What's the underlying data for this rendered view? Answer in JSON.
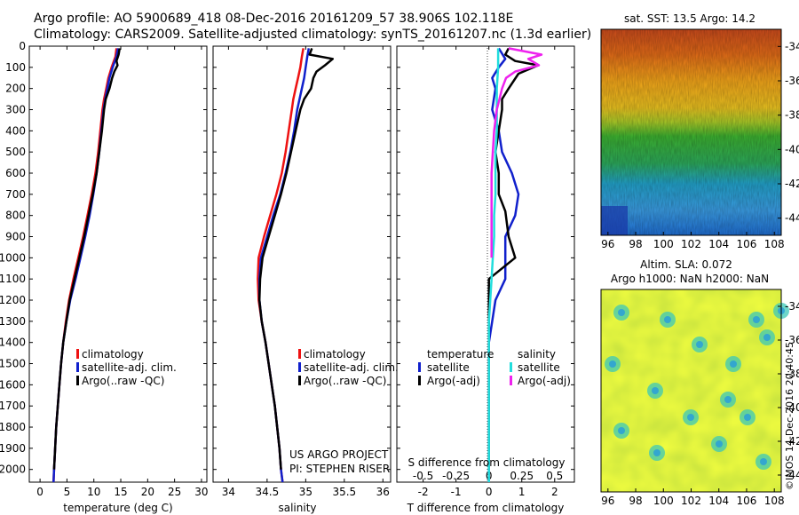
{
  "title_line1": "Argo profile: AO 5900689_418 08-Dec-2016 20161209_57 38.906S 102.118E",
  "title_line2": "Climatology: CARS2009. Satellite-adjusted climatology: synTS_20161207.nc (1.3d earlier)",
  "colors": {
    "climatology": "#ee1111",
    "satellite": "#1020cc",
    "argo": "#000000",
    "sal_satellite": "#22dddd",
    "sal_argo": "#ee22ee"
  },
  "chart_data": [
    {
      "type": "line",
      "xlabel": "temperature (deg C)",
      "ylabel": "",
      "xlim": [
        -2,
        31
      ],
      "ylim": [
        2060,
        0
      ],
      "xticks": [
        0,
        5,
        10,
        15,
        20,
        25,
        30
      ],
      "yticks": [
        0,
        100,
        200,
        300,
        400,
        500,
        600,
        700,
        800,
        900,
        1000,
        1100,
        1200,
        1300,
        1400,
        1500,
        1600,
        1700,
        1800,
        1900,
        2000
      ],
      "legend": {
        "position": "lower-middle",
        "entries": [
          "climatology",
          "satellite-adj. clim.",
          "Argo(..raw -QC)"
        ]
      },
      "series": [
        {
          "name": "climatology",
          "color": "#ee1111",
          "points": [
            [
              14.2,
              10
            ],
            [
              14.0,
              50
            ],
            [
              13.3,
              100
            ],
            [
              12.7,
              150
            ],
            [
              12.3,
              200
            ],
            [
              11.9,
              250
            ],
            [
              11.6,
              300
            ],
            [
              11.2,
              400
            ],
            [
              10.8,
              500
            ],
            [
              10.3,
              600
            ],
            [
              9.6,
              700
            ],
            [
              8.8,
              800
            ],
            [
              8.0,
              900
            ],
            [
              7.1,
              1000
            ],
            [
              6.2,
              1100
            ],
            [
              5.4,
              1200
            ],
            [
              4.8,
              1300
            ],
            [
              4.3,
              1400
            ],
            [
              3.9,
              1500
            ],
            [
              3.6,
              1600
            ],
            [
              3.3,
              1700
            ],
            [
              3.0,
              1800
            ],
            [
              2.8,
              1900
            ],
            [
              2.6,
              2000
            ],
            [
              2.5,
              2060
            ]
          ]
        },
        {
          "name": "satellite-adj. clim.",
          "color": "#1020cc",
          "points": [
            [
              14.5,
              10
            ],
            [
              14.2,
              50
            ],
            [
              13.5,
              100
            ],
            [
              12.9,
              150
            ],
            [
              12.5,
              200
            ],
            [
              12.1,
              250
            ],
            [
              11.8,
              300
            ],
            [
              11.4,
              400
            ],
            [
              11.0,
              500
            ],
            [
              10.5,
              600
            ],
            [
              9.9,
              700
            ],
            [
              9.2,
              800
            ],
            [
              8.4,
              900
            ],
            [
              7.5,
              1000
            ],
            [
              6.6,
              1100
            ],
            [
              5.6,
              1200
            ],
            [
              4.9,
              1300
            ],
            [
              4.3,
              1400
            ],
            [
              3.9,
              1500
            ],
            [
              3.6,
              1600
            ],
            [
              3.3,
              1700
            ],
            [
              3.0,
              1800
            ],
            [
              2.8,
              1900
            ],
            [
              2.6,
              2000
            ],
            [
              2.5,
              2060
            ]
          ]
        },
        {
          "name": "Argo(..raw -QC)",
          "color": "#000000",
          "points": [
            [
              14.8,
              10
            ],
            [
              14.6,
              40
            ],
            [
              14.2,
              70
            ],
            [
              14.4,
              90
            ],
            [
              13.8,
              120
            ],
            [
              13.4,
              150
            ],
            [
              12.9,
              200
            ],
            [
              12.2,
              250
            ],
            [
              11.9,
              300
            ],
            [
              11.5,
              400
            ],
            [
              11.0,
              500
            ],
            [
              10.5,
              600
            ],
            [
              9.8,
              700
            ],
            [
              9.0,
              800
            ],
            [
              8.2,
              900
            ],
            [
              7.3,
              1000
            ],
            [
              6.4,
              1100
            ],
            [
              5.5,
              1200
            ],
            [
              4.9,
              1300
            ],
            [
              4.3,
              1400
            ],
            [
              3.9,
              1500
            ],
            [
              3.6,
              1600
            ],
            [
              3.3,
              1700
            ],
            [
              3.0,
              1800
            ],
            [
              2.8,
              1900
            ],
            [
              2.6,
              2000
            ]
          ]
        }
      ]
    },
    {
      "type": "line",
      "xlabel": "salinity",
      "xlim": [
        33.8,
        36.1
      ],
      "ylim": [
        2060,
        0
      ],
      "xticks": [
        34,
        34.5,
        35,
        35.5,
        36
      ],
      "legend": {
        "position": "lower-right",
        "entries": [
          "climatology",
          "satellite-adj. clim.",
          "Argo(..raw -QC)"
        ]
      },
      "annotation_lines": [
        "US ARGO PROJECT",
        "PI: STEPHEN RISER"
      ],
      "series": [
        {
          "name": "climatology",
          "color": "#ee1111",
          "points": [
            [
              34.97,
              10
            ],
            [
              34.95,
              50
            ],
            [
              34.93,
              100
            ],
            [
              34.9,
              150
            ],
            [
              34.87,
              200
            ],
            [
              34.84,
              250
            ],
            [
              34.82,
              300
            ],
            [
              34.78,
              400
            ],
            [
              34.74,
              500
            ],
            [
              34.69,
              600
            ],
            [
              34.62,
              700
            ],
            [
              34.54,
              800
            ],
            [
              34.46,
              900
            ],
            [
              34.39,
              1000
            ],
            [
              34.38,
              1100
            ],
            [
              34.39,
              1200
            ],
            [
              34.43,
              1300
            ],
            [
              34.48,
              1400
            ],
            [
              34.52,
              1500
            ],
            [
              34.56,
              1600
            ],
            [
              34.6,
              1700
            ],
            [
              34.63,
              1800
            ],
            [
              34.66,
              1900
            ],
            [
              34.68,
              2000
            ],
            [
              34.7,
              2060
            ]
          ]
        },
        {
          "name": "satellite-adj. clim.",
          "color": "#1020cc",
          "points": [
            [
              35.04,
              10
            ],
            [
              35.02,
              50
            ],
            [
              35.0,
              100
            ],
            [
              34.98,
              150
            ],
            [
              34.95,
              200
            ],
            [
              34.92,
              250
            ],
            [
              34.89,
              300
            ],
            [
              34.85,
              400
            ],
            [
              34.8,
              500
            ],
            [
              34.74,
              600
            ],
            [
              34.67,
              700
            ],
            [
              34.58,
              800
            ],
            [
              34.5,
              900
            ],
            [
              34.42,
              1000
            ],
            [
              34.4,
              1100
            ],
            [
              34.4,
              1200
            ],
            [
              34.43,
              1300
            ],
            [
              34.48,
              1400
            ],
            [
              34.52,
              1500
            ],
            [
              34.56,
              1600
            ],
            [
              34.6,
              1700
            ],
            [
              34.63,
              1800
            ],
            [
              34.66,
              1900
            ],
            [
              34.68,
              2000
            ],
            [
              34.7,
              2060
            ]
          ]
        },
        {
          "name": "Argo(..raw -QC)",
          "color": "#000000",
          "points": [
            [
              35.08,
              10
            ],
            [
              35.05,
              40
            ],
            [
              35.35,
              60
            ],
            [
              35.25,
              90
            ],
            [
              35.14,
              120
            ],
            [
              35.1,
              150
            ],
            [
              35.07,
              200
            ],
            [
              34.98,
              250
            ],
            [
              34.93,
              300
            ],
            [
              34.87,
              400
            ],
            [
              34.81,
              500
            ],
            [
              34.75,
              600
            ],
            [
              34.68,
              700
            ],
            [
              34.6,
              800
            ],
            [
              34.52,
              900
            ],
            [
              34.44,
              1000
            ],
            [
              34.41,
              1100
            ],
            [
              34.4,
              1200
            ],
            [
              34.43,
              1300
            ],
            [
              34.48,
              1400
            ],
            [
              34.52,
              1500
            ],
            [
              34.56,
              1600
            ],
            [
              34.6,
              1700
            ],
            [
              34.63,
              1800
            ],
            [
              34.66,
              1900
            ],
            [
              34.68,
              2000
            ]
          ]
        }
      ]
    },
    {
      "type": "line",
      "xlabel": "T difference from climatology",
      "top_axis_label": "S difference from climatology",
      "xlim": [
        -2.8,
        2.6
      ],
      "ylim": [
        2060,
        0
      ],
      "xticks": [
        -2,
        -1,
        0,
        1,
        2
      ],
      "xticks_top": [
        -0.5,
        -0.25,
        0,
        0.25,
        0.5
      ],
      "xticks_top_labels": [
        "-0.5",
        "-0.25",
        "0",
        "0.25",
        "0.5"
      ],
      "legend": {
        "position": "lower",
        "groups": [
          {
            "title": "temperature",
            "entries": [
              "satellite",
              "Argo(-adj)"
            ]
          },
          {
            "title": "salinity",
            "entries": [
              "satellite",
              "Argo(-adj)"
            ]
          }
        ]
      },
      "series": [
        {
          "name": "temperature satellite",
          "color": "#1020cc",
          "points": [
            [
              0.3,
              10
            ],
            [
              0.5,
              60
            ],
            [
              0.3,
              100
            ],
            [
              0.1,
              150
            ],
            [
              0.2,
              200
            ],
            [
              0.1,
              300
            ],
            [
              0.3,
              400
            ],
            [
              0.4,
              500
            ],
            [
              0.7,
              600
            ],
            [
              0.9,
              700
            ],
            [
              0.8,
              800
            ],
            [
              0.5,
              900
            ],
            [
              0.5,
              1000
            ],
            [
              0.5,
              1100
            ],
            [
              0.2,
              1200
            ],
            [
              0.1,
              1300
            ],
            [
              0,
              1400
            ],
            [
              0,
              2060
            ]
          ]
        },
        {
          "name": "temperature Argo(-adj)",
          "color": "#000000",
          "points": [
            [
              0.6,
              10
            ],
            [
              0.5,
              40
            ],
            [
              0.8,
              70
            ],
            [
              1.5,
              90
            ],
            [
              0.9,
              130
            ],
            [
              0.6,
              200
            ],
            [
              0.4,
              250
            ],
            [
              0.4,
              300
            ],
            [
              0.3,
              400
            ],
            [
              0.2,
              500
            ],
            [
              0.3,
              600
            ],
            [
              0.3,
              700
            ],
            [
              0.5,
              780
            ],
            [
              0.6,
              900
            ],
            [
              0.7,
              950
            ],
            [
              0.8,
              1000
            ],
            [
              0,
              1100
            ],
            [
              0,
              2000
            ]
          ]
        },
        {
          "name": "salinity satellite",
          "color": "#22dddd",
          "points": [
            [
              0.07,
              10
            ],
            [
              0.07,
              100
            ],
            [
              0.06,
              200
            ],
            [
              0.06,
              300
            ],
            [
              0.06,
              400
            ],
            [
              0.05,
              500
            ],
            [
              0.05,
              600
            ],
            [
              0.05,
              700
            ],
            [
              0.04,
              800
            ],
            [
              0.04,
              900
            ],
            [
              0.03,
              1000
            ],
            [
              0.02,
              1100
            ],
            [
              0.01,
              1200
            ],
            [
              0,
              1300
            ],
            [
              0,
              2060
            ]
          ]
        },
        {
          "name": "salinity Argo(-adj)",
          "color": "#ee22ee",
          "points": [
            [
              0.15,
              10
            ],
            [
              0.4,
              40
            ],
            [
              0.3,
              60
            ],
            [
              0.38,
              90
            ],
            [
              0.2,
              120
            ],
            [
              0.13,
              150
            ],
            [
              0.1,
              200
            ],
            [
              0.08,
              250
            ],
            [
              0.06,
              300
            ],
            [
              0.04,
              400
            ],
            [
              0.03,
              500
            ],
            [
              0.02,
              600
            ],
            [
              0.02,
              700
            ],
            [
              0.02,
              800
            ],
            [
              0.02,
              900
            ],
            [
              0.02,
              1000
            ]
          ]
        }
      ]
    },
    {
      "type": "heatmap",
      "title": "sat. SST: 13.5 Argo: 14.2",
      "xlim": [
        95.5,
        108.5
      ],
      "ylim": [
        -45,
        -33
      ],
      "xticks": [
        96,
        98,
        100,
        102,
        104,
        106,
        108
      ],
      "yticks": [
        -34,
        -36,
        -38,
        -40,
        -42,
        -44
      ]
    },
    {
      "type": "heatmap",
      "title_line1": "Altim. SLA: 0.072",
      "title_line2": "Argo h1000: NaN h2000: NaN",
      "xlim": [
        95.5,
        108.5
      ],
      "ylim": [
        -45,
        -33
      ],
      "xticks": [
        96,
        98,
        100,
        102,
        104,
        106,
        108
      ],
      "yticks": [
        -34,
        -36,
        -38,
        -40,
        -42,
        -44
      ],
      "side_label": "©IMOS 14-Dec-2016 20:40:45"
    }
  ]
}
